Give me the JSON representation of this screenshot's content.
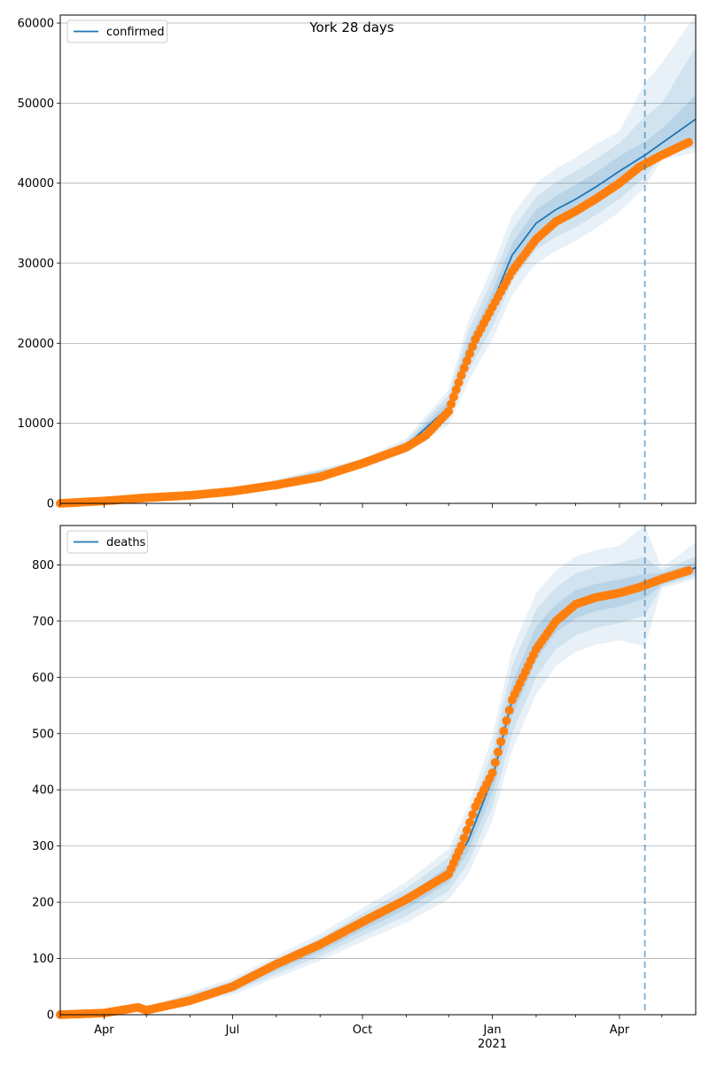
{
  "figure_title": "York 28 days",
  "chart_data": [
    {
      "type": "line",
      "panel": "top",
      "title": "York 28 days",
      "legend": {
        "entries": [
          "confirmed"
        ],
        "position": "upper-left"
      },
      "ylim": [
        0,
        61000
      ],
      "yticks": [
        0,
        10000,
        20000,
        30000,
        40000,
        50000,
        60000
      ],
      "xlim": [
        "2020-03-01",
        "2021-05-25"
      ],
      "grid": "horizontal",
      "forecast_start": "2021-04-19",
      "colors": {
        "model": "#1f77b4",
        "observed": "#ff7f0e",
        "band": "#1f77b4"
      },
      "series": [
        {
          "name": "confirmed",
          "role": "model",
          "x": [
            "2020-03-01",
            "2020-05-01",
            "2020-07-01",
            "2020-09-01",
            "2020-10-01",
            "2020-11-01",
            "2020-12-01",
            "2020-12-15",
            "2021-01-01",
            "2021-01-15",
            "2021-02-01",
            "2021-02-15",
            "2021-03-01",
            "2021-03-15",
            "2021-04-01",
            "2021-04-19",
            "2021-05-01",
            "2021-05-25"
          ],
          "y": [
            0,
            600,
            1500,
            3200,
            5000,
            7200,
            12000,
            19000,
            25000,
            31000,
            35000,
            36700,
            38000,
            39500,
            41500,
            43500,
            45000,
            48000
          ]
        },
        {
          "name": "observed",
          "role": "observed",
          "x": [
            "2020-03-01",
            "2020-04-01",
            "2020-05-01",
            "2020-06-01",
            "2020-07-01",
            "2020-08-01",
            "2020-09-01",
            "2020-10-01",
            "2020-11-01",
            "2020-11-15",
            "2020-12-01",
            "2020-12-10",
            "2020-12-20",
            "2021-01-01",
            "2021-01-15",
            "2021-02-01",
            "2021-02-15",
            "2021-03-01",
            "2021-03-15",
            "2021-04-01",
            "2021-04-15",
            "2021-05-01",
            "2021-05-20"
          ],
          "y": [
            0,
            300,
            700,
            1000,
            1500,
            2300,
            3300,
            5000,
            7000,
            8500,
            11500,
            16000,
            20500,
            24500,
            29000,
            33000,
            35200,
            36500,
            38000,
            40000,
            42000,
            43500,
            45100
          ]
        }
      ],
      "bands": {
        "x": [
          "2020-03-01",
          "2020-07-01",
          "2020-10-01",
          "2020-11-01",
          "2020-12-01",
          "2020-12-15",
          "2021-01-01",
          "2021-01-15",
          "2021-02-01",
          "2021-02-15",
          "2021-03-01",
          "2021-03-15",
          "2021-04-01",
          "2021-04-19",
          "2021-05-01",
          "2021-05-25"
        ],
        "inner": {
          "lower": [
            0,
            1450,
            4800,
            6900,
            11200,
            17800,
            23500,
            29500,
            33300,
            35000,
            36200,
            37700,
            39600,
            41800,
            43800,
            45500
          ],
          "upper": [
            0,
            1550,
            5200,
            7500,
            12800,
            20200,
            26500,
            32500,
            36700,
            38400,
            39800,
            41300,
            43400,
            45200,
            46800,
            51000
          ]
        },
        "outer": {
          "lower": [
            0,
            1400,
            4600,
            6600,
            10500,
            16500,
            22000,
            27800,
            31700,
            33300,
            34500,
            36000,
            38000,
            40800,
            43500,
            44500
          ],
          "upper": [
            0,
            1600,
            5400,
            7800,
            13500,
            21500,
            28000,
            34200,
            38300,
            40100,
            41500,
            43000,
            45000,
            48300,
            50000,
            57000
          ]
        },
        "outer2": {
          "lower": [
            0,
            1350,
            4400,
            6300,
            9800,
            15200,
            20500,
            26000,
            30000,
            31500,
            32800,
            34300,
            36400,
            39500,
            43000,
            43800
          ],
          "upper": [
            0,
            1650,
            5600,
            8100,
            14200,
            22800,
            29500,
            36000,
            40000,
            41800,
            43200,
            44800,
            46500,
            52500,
            55000,
            61000
          ]
        }
      }
    },
    {
      "type": "line",
      "panel": "bottom",
      "legend": {
        "entries": [
          "deaths"
        ],
        "position": "upper-left"
      },
      "ylim": [
        0,
        870
      ],
      "yticks": [
        0,
        100,
        200,
        300,
        400,
        500,
        600,
        700,
        800
      ],
      "xlim": [
        "2020-03-01",
        "2021-05-25"
      ],
      "grid": "horizontal",
      "forecast_start": "2021-04-19",
      "xtick_labels": [
        "Apr",
        "Jul",
        "Oct",
        "Jan",
        "Apr"
      ],
      "xtick_dates": [
        "2020-04-01",
        "2020-07-01",
        "2020-10-01",
        "2021-01-01",
        "2021-04-01"
      ],
      "year_label": "2021",
      "colors": {
        "model": "#1f77b4",
        "observed": "#ff7f0e",
        "band": "#1f77b4"
      },
      "series": [
        {
          "name": "deaths",
          "role": "model",
          "x": [
            "2020-03-01",
            "2020-04-01",
            "2020-05-01",
            "2020-06-01",
            "2020-07-01",
            "2020-08-01",
            "2020-09-01",
            "2020-10-01",
            "2020-11-01",
            "2020-12-01",
            "2020-12-15",
            "2021-01-01",
            "2021-01-15",
            "2021-02-01",
            "2021-02-15",
            "2021-03-01",
            "2021-03-15",
            "2021-04-01",
            "2021-04-19",
            "2021-05-01",
            "2021-05-25"
          ],
          "y": [
            0,
            2,
            10,
            25,
            50,
            85,
            120,
            160,
            200,
            250,
            310,
            420,
            560,
            660,
            705,
            730,
            742,
            750,
            762,
            775,
            795
          ]
        },
        {
          "name": "observed",
          "role": "observed",
          "x": [
            "2020-03-01",
            "2020-04-01",
            "2020-04-25",
            "2020-05-01",
            "2020-06-01",
            "2020-07-01",
            "2020-08-01",
            "2020-09-01",
            "2020-10-01",
            "2020-11-01",
            "2020-12-01",
            "2020-12-10",
            "2020-12-20",
            "2021-01-01",
            "2021-01-15",
            "2021-02-01",
            "2021-02-15",
            "2021-03-01",
            "2021-03-15",
            "2021-04-01",
            "2021-04-15",
            "2021-05-01",
            "2021-05-20"
          ],
          "y": [
            0,
            3,
            13,
            8,
            25,
            50,
            90,
            125,
            165,
            205,
            250,
            300,
            370,
            430,
            560,
            650,
            700,
            730,
            742,
            750,
            760,
            775,
            790
          ]
        }
      ],
      "bands": {
        "x": [
          "2020-03-01",
          "2020-05-01",
          "2020-07-01",
          "2020-09-01",
          "2020-10-01",
          "2020-11-01",
          "2020-12-01",
          "2020-12-15",
          "2021-01-01",
          "2021-01-15",
          "2021-02-01",
          "2021-02-15",
          "2021-03-01",
          "2021-03-15",
          "2021-04-01",
          "2021-04-19",
          "2021-05-01",
          "2021-05-25"
        ],
        "inner": {
          "lower": [
            0,
            9,
            45,
            112,
            150,
            188,
            235,
            290,
            395,
            530,
            630,
            680,
            705,
            718,
            726,
            740,
            765,
            785
          ],
          "upper": [
            0,
            11,
            55,
            128,
            170,
            212,
            265,
            330,
            445,
            590,
            690,
            730,
            755,
            766,
            774,
            784,
            785,
            805
          ]
        },
        "outer": {
          "lower": [
            0,
            8,
            40,
            104,
            140,
            176,
            220,
            270,
            370,
            500,
            600,
            650,
            675,
            688,
            696,
            710,
            762,
            780
          ],
          "upper": [
            0,
            12,
            60,
            136,
            180,
            224,
            280,
            350,
            470,
            620,
            720,
            760,
            785,
            796,
            804,
            814,
            790,
            815
          ]
        },
        "outer2": {
          "lower": [
            0,
            7,
            35,
            96,
            130,
            164,
            205,
            250,
            345,
            470,
            570,
            620,
            645,
            658,
            666,
            655,
            758,
            775
          ],
          "upper": [
            0,
            13,
            65,
            144,
            190,
            236,
            295,
            370,
            495,
            650,
            750,
            790,
            815,
            826,
            834,
            870,
            795,
            840
          ]
        }
      }
    }
  ]
}
